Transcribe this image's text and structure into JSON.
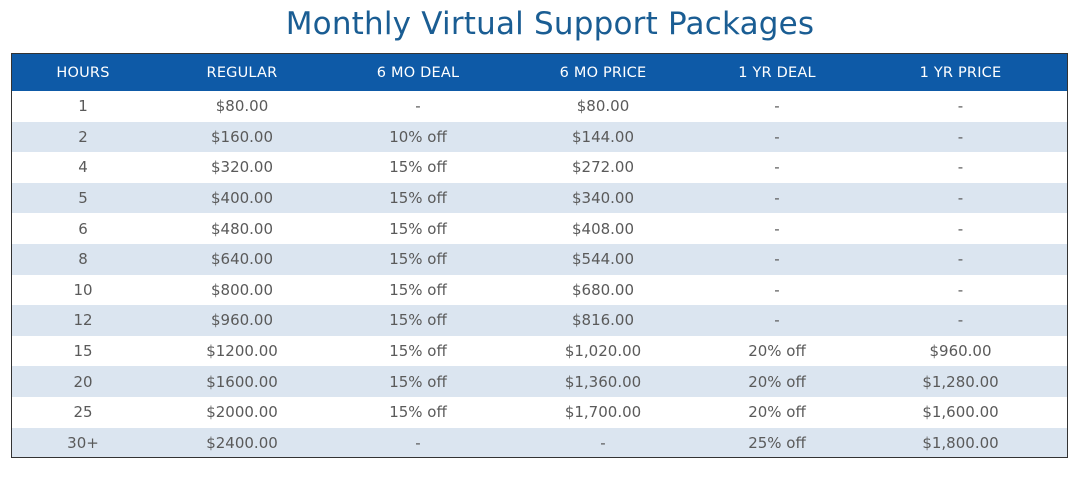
{
  "title": "Monthly Virtual Support Packages",
  "headers": [
    "HOURS",
    "REGULAR",
    "6 MO DEAL",
    "6 MO PRICE",
    "1 YR DEAL",
    "1 YR PRICE"
  ],
  "rows": [
    [
      "1",
      "$80.00",
      "-",
      "$80.00",
      "-",
      "-"
    ],
    [
      "2",
      "$160.00",
      "10% off",
      "$144.00",
      "-",
      "-"
    ],
    [
      "4",
      "$320.00",
      "15% off",
      "$272.00",
      "-",
      "-"
    ],
    [
      "5",
      "$400.00",
      "15% off",
      "$340.00",
      "-",
      "-"
    ],
    [
      "6",
      "$480.00",
      "15% off",
      "$408.00",
      "-",
      "-"
    ],
    [
      "8",
      "$640.00",
      "15% off",
      "$544.00",
      "-",
      "-"
    ],
    [
      "10",
      "$800.00",
      "15% off",
      "$680.00",
      "-",
      "-"
    ],
    [
      "12",
      "$960.00",
      "15% off",
      "$816.00",
      "-",
      "-"
    ],
    [
      "15",
      "$1200.00",
      "15% off",
      "$1,020.00",
      "20% off",
      "$960.00"
    ],
    [
      "20",
      "$1600.00",
      "15% off",
      "$1,360.00",
      "20% off",
      "$1,280.00"
    ],
    [
      "25",
      "$2000.00",
      "15% off",
      "$1,700.00",
      "20% off",
      "$1,600.00"
    ],
    [
      "30+",
      "$2400.00",
      "-",
      "-",
      "25% off",
      "$1,800.00"
    ]
  ],
  "colors": {
    "title": "#1a5d93",
    "header_bg": "#0e5aa7",
    "header_text": "#ffffff",
    "alt_row_bg": "#dbe5f0",
    "cell_text": "#5a5a5a"
  }
}
